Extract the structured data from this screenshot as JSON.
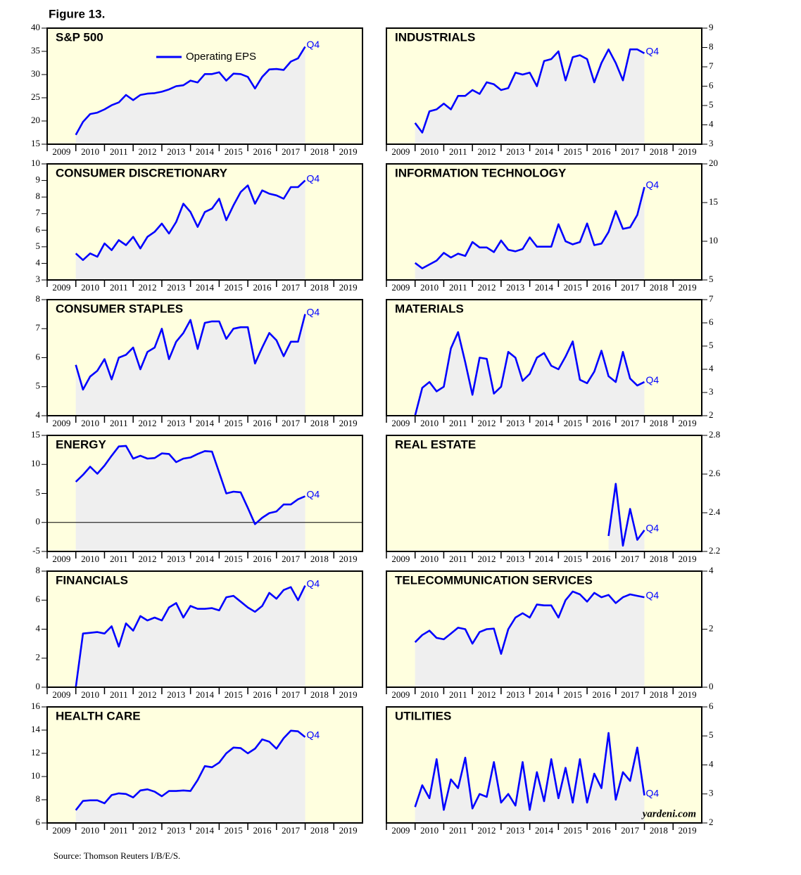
{
  "figure_title": "Figure 13.",
  "source": "Source: Thomson Reuters I/B/E/S.",
  "chart_data": [
    {
      "type": "line",
      "title": "S&P 500",
      "annotation": "Q4",
      "legend": true,
      "y_axis_side": "left",
      "x": [
        2010,
        2010.25,
        2010.5,
        2010.75,
        2011,
        2011.25,
        2011.5,
        2011.75,
        2012,
        2012.25,
        2012.5,
        2012.75,
        2013,
        2013.25,
        2013.5,
        2013.75,
        2014,
        2014.25,
        2014.5,
        2014.75,
        2015,
        2015.25,
        2015.5,
        2015.75,
        2016,
        2016.25,
        2016.5,
        2016.75,
        2017,
        2017.25,
        2017.5,
        2017.75,
        2018
      ],
      "series": [
        {
          "name": "Operating EPS",
          "color": "#0000ff",
          "values": [
            17,
            19.8,
            21.5,
            21.8,
            22.5,
            23.4,
            24.0,
            25.6,
            24.5,
            25.6,
            25.9,
            26.0,
            26.3,
            26.8,
            27.5,
            27.7,
            28.7,
            28.3,
            30.1,
            30.1,
            30.5,
            28.7,
            30.2,
            30.1,
            29.5,
            27.0,
            29.5,
            31.1,
            31.2,
            31.0,
            32.8,
            33.5,
            36.0
          ]
        }
      ],
      "xlim": [
        2009,
        2020
      ],
      "xticks": [
        2009,
        2010,
        2011,
        2012,
        2013,
        2014,
        2015,
        2016,
        2017,
        2018,
        2019
      ],
      "ylim": [
        15,
        40
      ],
      "yticks": [
        15,
        20,
        25,
        30,
        35,
        40
      ]
    },
    {
      "type": "line",
      "title": "INDUSTRIALS",
      "annotation": "Q4",
      "y_axis_side": "right",
      "x": [
        2010,
        2010.25,
        2010.5,
        2010.75,
        2011,
        2011.25,
        2011.5,
        2011.75,
        2012,
        2012.25,
        2012.5,
        2012.75,
        2013,
        2013.25,
        2013.5,
        2013.75,
        2014,
        2014.25,
        2014.5,
        2014.75,
        2015,
        2015.25,
        2015.5,
        2015.75,
        2016,
        2016.25,
        2016.5,
        2016.75,
        2017,
        2017.25,
        2017.5,
        2017.75,
        2018
      ],
      "series": [
        {
          "color": "#0000ff",
          "values": [
            4.1,
            3.6,
            4.7,
            4.8,
            5.1,
            4.8,
            5.5,
            5.5,
            5.8,
            5.6,
            6.2,
            6.1,
            5.8,
            5.9,
            6.7,
            6.6,
            6.7,
            6.0,
            7.3,
            7.4,
            7.8,
            6.3,
            7.5,
            7.6,
            7.4,
            6.2,
            7.2,
            7.9,
            7.2,
            6.3,
            7.9,
            7.9,
            7.7
          ]
        }
      ],
      "xlim": [
        2009,
        2020
      ],
      "xticks": [
        2009,
        2010,
        2011,
        2012,
        2013,
        2014,
        2015,
        2016,
        2017,
        2018,
        2019
      ],
      "ylim": [
        3,
        9
      ],
      "yticks": [
        3,
        4,
        5,
        6,
        7,
        8,
        9
      ]
    },
    {
      "type": "line",
      "title": "CONSUMER DISCRETIONARY",
      "annotation": "Q4",
      "y_axis_side": "left",
      "x": [
        2010,
        2010.25,
        2010.5,
        2010.75,
        2011,
        2011.25,
        2011.5,
        2011.75,
        2012,
        2012.25,
        2012.5,
        2012.75,
        2013,
        2013.25,
        2013.5,
        2013.75,
        2014,
        2014.25,
        2014.5,
        2014.75,
        2015,
        2015.25,
        2015.5,
        2015.75,
        2016,
        2016.25,
        2016.5,
        2016.75,
        2017,
        2017.25,
        2017.5,
        2017.75,
        2018
      ],
      "series": [
        {
          "color": "#0000ff",
          "values": [
            4.6,
            4.2,
            4.6,
            4.4,
            5.2,
            4.8,
            5.4,
            5.1,
            5.6,
            4.9,
            5.6,
            5.9,
            6.4,
            5.8,
            6.5,
            7.6,
            7.1,
            6.2,
            7.1,
            7.3,
            7.9,
            6.6,
            7.5,
            8.3,
            8.7,
            7.6,
            8.4,
            8.2,
            8.1,
            7.9,
            8.6,
            8.6,
            9.0
          ]
        }
      ],
      "xlim": [
        2009,
        2020
      ],
      "xticks": [
        2009,
        2010,
        2011,
        2012,
        2013,
        2014,
        2015,
        2016,
        2017,
        2018,
        2019
      ],
      "ylim": [
        3,
        10
      ],
      "yticks": [
        3,
        4,
        5,
        6,
        7,
        8,
        9,
        10
      ]
    },
    {
      "type": "line",
      "title": "INFORMATION TECHNOLOGY",
      "annotation": "Q4",
      "y_axis_side": "right",
      "x": [
        2010,
        2010.25,
        2010.5,
        2010.75,
        2011,
        2011.25,
        2011.5,
        2011.75,
        2012,
        2012.25,
        2012.5,
        2012.75,
        2013,
        2013.25,
        2013.5,
        2013.75,
        2014,
        2014.25,
        2014.5,
        2014.75,
        2015,
        2015.25,
        2015.5,
        2015.75,
        2016,
        2016.25,
        2016.5,
        2016.75,
        2017,
        2017.25,
        2017.5,
        2017.75,
        2018
      ],
      "series": [
        {
          "color": "#0000ff",
          "values": [
            7.2,
            6.5,
            7.0,
            7.5,
            8.5,
            7.9,
            8.4,
            8.1,
            9.9,
            9.2,
            9.2,
            8.6,
            10.1,
            8.9,
            8.7,
            9.0,
            10.5,
            9.3,
            9.3,
            9.3,
            12.2,
            10.0,
            9.6,
            9.9,
            12.3,
            9.5,
            9.7,
            11.2,
            13.9,
            11.6,
            11.8,
            13.4,
            17.0
          ]
        }
      ],
      "xlim": [
        2009,
        2020
      ],
      "xticks": [
        2009,
        2010,
        2011,
        2012,
        2013,
        2014,
        2015,
        2016,
        2017,
        2018,
        2019
      ],
      "ylim": [
        5,
        20
      ],
      "yticks": [
        5,
        10,
        15,
        20
      ]
    },
    {
      "type": "line",
      "title": "CONSUMER STAPLES",
      "annotation": "Q4",
      "y_axis_side": "left",
      "x": [
        2010,
        2010.25,
        2010.5,
        2010.75,
        2011,
        2011.25,
        2011.5,
        2011.75,
        2012,
        2012.25,
        2012.5,
        2012.75,
        2013,
        2013.25,
        2013.5,
        2013.75,
        2014,
        2014.25,
        2014.5,
        2014.75,
        2015,
        2015.25,
        2015.5,
        2015.75,
        2016,
        2016.25,
        2016.5,
        2016.75,
        2017,
        2017.25,
        2017.5,
        2017.75,
        2018
      ],
      "series": [
        {
          "color": "#0000ff",
          "values": [
            5.75,
            4.9,
            5.35,
            5.55,
            5.95,
            5.25,
            6.0,
            6.1,
            6.35,
            5.6,
            6.2,
            6.35,
            7.0,
            5.95,
            6.55,
            6.85,
            7.3,
            6.3,
            7.2,
            7.25,
            7.25,
            6.65,
            7.0,
            7.05,
            7.05,
            5.8,
            6.35,
            6.85,
            6.6,
            6.05,
            6.55,
            6.55,
            7.5
          ]
        }
      ],
      "xlim": [
        2009,
        2020
      ],
      "xticks": [
        2009,
        2010,
        2011,
        2012,
        2013,
        2014,
        2015,
        2016,
        2017,
        2018,
        2019
      ],
      "ylim": [
        4,
        8
      ],
      "yticks": [
        4,
        5,
        6,
        7,
        8
      ]
    },
    {
      "type": "line",
      "title": "MATERIALS",
      "annotation": "Q4",
      "y_axis_side": "right",
      "x": [
        2010,
        2010.25,
        2010.5,
        2010.75,
        2011,
        2011.25,
        2011.5,
        2011.75,
        2012,
        2012.25,
        2012.5,
        2012.75,
        2013,
        2013.25,
        2013.5,
        2013.75,
        2014,
        2014.25,
        2014.5,
        2014.75,
        2015,
        2015.25,
        2015.5,
        2015.75,
        2016,
        2016.25,
        2016.5,
        2016.75,
        2017,
        2017.25,
        2017.5,
        2017.75,
        2018
      ],
      "series": [
        {
          "color": "#0000ff",
          "values": [
            2.0,
            3.2,
            3.45,
            3.05,
            3.25,
            4.9,
            5.6,
            4.3,
            2.9,
            4.5,
            4.45,
            2.95,
            3.25,
            4.75,
            4.5,
            3.5,
            3.8,
            4.5,
            4.7,
            4.15,
            4.0,
            4.55,
            5.2,
            3.55,
            3.4,
            3.9,
            4.8,
            3.7,
            3.45,
            4.75,
            3.6,
            3.3,
            3.45
          ]
        }
      ],
      "xlim": [
        2009,
        2020
      ],
      "xticks": [
        2009,
        2010,
        2011,
        2012,
        2013,
        2014,
        2015,
        2016,
        2017,
        2018,
        2019
      ],
      "ylim": [
        2,
        7
      ],
      "yticks": [
        2,
        3,
        4,
        5,
        6,
        7
      ]
    },
    {
      "type": "line",
      "title": "ENERGY",
      "annotation": "Q4",
      "y_axis_side": "left",
      "zero_line": true,
      "x": [
        2010,
        2010.25,
        2010.5,
        2010.75,
        2011,
        2011.25,
        2011.5,
        2011.75,
        2012,
        2012.25,
        2012.5,
        2012.75,
        2013,
        2013.25,
        2013.5,
        2013.75,
        2014,
        2014.25,
        2014.5,
        2014.75,
        2015,
        2015.25,
        2015.5,
        2015.75,
        2016,
        2016.25,
        2016.5,
        2016.75,
        2017,
        2017.25,
        2017.5,
        2017.75,
        2018
      ],
      "series": [
        {
          "color": "#0000ff",
          "values": [
            7.0,
            8.2,
            9.6,
            8.4,
            9.8,
            11.5,
            13.1,
            13.2,
            11.0,
            11.5,
            11.0,
            11.1,
            11.9,
            11.8,
            10.4,
            11.0,
            11.2,
            11.8,
            12.3,
            12.2,
            8.6,
            5.0,
            5.3,
            5.2,
            2.5,
            -0.3,
            0.8,
            1.6,
            1.9,
            3.1,
            3.1,
            4.0,
            4.5
          ]
        }
      ],
      "xlim": [
        2009,
        2020
      ],
      "xticks": [
        2009,
        2010,
        2011,
        2012,
        2013,
        2014,
        2015,
        2016,
        2017,
        2018,
        2019
      ],
      "ylim": [
        -5,
        15
      ],
      "yticks": [
        -5,
        0,
        5,
        10,
        15
      ]
    },
    {
      "type": "line",
      "title": "REAL ESTATE",
      "annotation": "Q4",
      "y_axis_side": "right",
      "x": [
        2016.75,
        2017,
        2017.25,
        2017.5,
        2017.75,
        2018
      ],
      "series": [
        {
          "color": "#0000ff",
          "values": [
            2.28,
            2.55,
            2.23,
            2.42,
            2.26,
            2.31
          ]
        }
      ],
      "xlim": [
        2009,
        2020
      ],
      "xticks": [
        2009,
        2010,
        2011,
        2012,
        2013,
        2014,
        2015,
        2016,
        2017,
        2018,
        2019
      ],
      "ylim": [
        2.2,
        2.8
      ],
      "yticks": [
        2.2,
        2.4,
        2.6,
        2.8
      ]
    },
    {
      "type": "line",
      "title": "FINANCIALS",
      "annotation": "Q4",
      "y_axis_side": "left",
      "x": [
        2010,
        2010.25,
        2010.5,
        2010.75,
        2011,
        2011.25,
        2011.5,
        2011.75,
        2012,
        2012.25,
        2012.5,
        2012.75,
        2013,
        2013.25,
        2013.5,
        2013.75,
        2014,
        2014.25,
        2014.5,
        2014.75,
        2015,
        2015.25,
        2015.5,
        2015.75,
        2016,
        2016.25,
        2016.5,
        2016.75,
        2017,
        2017.25,
        2017.5,
        2017.75,
        2018
      ],
      "series": [
        {
          "color": "#0000ff",
          "values": [
            0.0,
            3.7,
            3.75,
            3.8,
            3.7,
            4.2,
            2.8,
            4.4,
            3.9,
            4.9,
            4.6,
            4.8,
            4.6,
            5.5,
            5.8,
            4.8,
            5.6,
            5.4,
            5.4,
            5.45,
            5.3,
            6.2,
            6.3,
            5.9,
            5.5,
            5.2,
            5.6,
            6.5,
            6.1,
            6.7,
            6.9,
            6.0,
            7.0
          ]
        }
      ],
      "xlim": [
        2009,
        2020
      ],
      "xticks": [
        2009,
        2010,
        2011,
        2012,
        2013,
        2014,
        2015,
        2016,
        2017,
        2018,
        2019
      ],
      "ylim": [
        0,
        8
      ],
      "yticks": [
        0,
        2,
        4,
        6,
        8
      ]
    },
    {
      "type": "line",
      "title": "TELECOMMUNICATION SERVICES",
      "annotation": "Q4",
      "y_axis_side": "right",
      "x": [
        2010,
        2010.25,
        2010.5,
        2010.75,
        2011,
        2011.25,
        2011.5,
        2011.75,
        2012,
        2012.25,
        2012.5,
        2012.75,
        2013,
        2013.25,
        2013.5,
        2013.75,
        2014,
        2014.25,
        2014.5,
        2014.75,
        2015,
        2015.25,
        2015.5,
        2015.75,
        2016,
        2016.25,
        2016.5,
        2016.75,
        2017,
        2017.25,
        2017.5,
        2017.75,
        2018
      ],
      "series": [
        {
          "color": "#0000ff",
          "values": [
            1.55,
            1.8,
            1.95,
            1.7,
            1.65,
            1.85,
            2.05,
            2.0,
            1.5,
            1.9,
            2.0,
            2.02,
            1.15,
            2.0,
            2.4,
            2.55,
            2.4,
            2.85,
            2.82,
            2.82,
            2.4,
            3.0,
            3.3,
            3.2,
            2.95,
            3.25,
            3.1,
            3.18,
            2.9,
            3.1,
            3.2,
            3.15,
            3.1
          ]
        }
      ],
      "xlim": [
        2009,
        2020
      ],
      "xticks": [
        2009,
        2010,
        2011,
        2012,
        2013,
        2014,
        2015,
        2016,
        2017,
        2018,
        2019
      ],
      "ylim": [
        0,
        4
      ],
      "yticks": [
        0,
        2,
        4
      ]
    },
    {
      "type": "line",
      "title": "HEALTH CARE",
      "annotation": "Q4",
      "y_axis_side": "left",
      "x": [
        2010,
        2010.25,
        2010.5,
        2010.75,
        2011,
        2011.25,
        2011.5,
        2011.75,
        2012,
        2012.25,
        2012.5,
        2012.75,
        2013,
        2013.25,
        2013.5,
        2013.75,
        2014,
        2014.25,
        2014.5,
        2014.75,
        2015,
        2015.25,
        2015.5,
        2015.75,
        2016,
        2016.25,
        2016.5,
        2016.75,
        2017,
        2017.25,
        2017.5,
        2017.75,
        2018
      ],
      "series": [
        {
          "color": "#0000ff",
          "values": [
            7.1,
            7.9,
            7.95,
            7.95,
            7.7,
            8.4,
            8.55,
            8.5,
            8.2,
            8.8,
            8.9,
            8.7,
            8.3,
            8.75,
            8.75,
            8.8,
            8.75,
            9.7,
            10.9,
            10.8,
            11.2,
            12.0,
            12.5,
            12.45,
            12.0,
            12.4,
            13.2,
            13.0,
            12.4,
            13.3,
            13.95,
            13.9,
            13.4
          ]
        }
      ],
      "xlim": [
        2009,
        2020
      ],
      "xticks": [
        2009,
        2010,
        2011,
        2012,
        2013,
        2014,
        2015,
        2016,
        2017,
        2018,
        2019
      ],
      "ylim": [
        6,
        16
      ],
      "yticks": [
        6,
        8,
        10,
        12,
        14,
        16
      ]
    },
    {
      "type": "line",
      "title": "UTILITIES",
      "annotation": "Q4",
      "watermark": "yardeni.com",
      "y_axis_side": "right",
      "x": [
        2010,
        2010.25,
        2010.5,
        2010.75,
        2011,
        2011.25,
        2011.5,
        2011.75,
        2012,
        2012.25,
        2012.5,
        2012.75,
        2013,
        2013.25,
        2013.5,
        2013.75,
        2014,
        2014.25,
        2014.5,
        2014.75,
        2015,
        2015.25,
        2015.5,
        2015.75,
        2016,
        2016.25,
        2016.5,
        2016.75,
        2017,
        2017.25,
        2017.5,
        2017.75,
        2018
      ],
      "series": [
        {
          "color": "#0000ff",
          "values": [
            2.55,
            3.3,
            2.85,
            4.2,
            2.45,
            3.5,
            3.2,
            4.25,
            2.5,
            3.0,
            2.9,
            4.1,
            2.7,
            3.0,
            2.6,
            4.1,
            2.45,
            3.75,
            2.75,
            4.2,
            2.85,
            3.9,
            2.7,
            4.2,
            2.7,
            3.7,
            3.2,
            5.1,
            2.8,
            3.75,
            3.45,
            4.6,
            2.95
          ]
        }
      ],
      "xlim": [
        2009,
        2020
      ],
      "xticks": [
        2009,
        2010,
        2011,
        2012,
        2013,
        2014,
        2015,
        2016,
        2017,
        2018,
        2019
      ],
      "ylim": [
        2,
        6
      ],
      "yticks": [
        2,
        3,
        4,
        5,
        6
      ]
    }
  ]
}
